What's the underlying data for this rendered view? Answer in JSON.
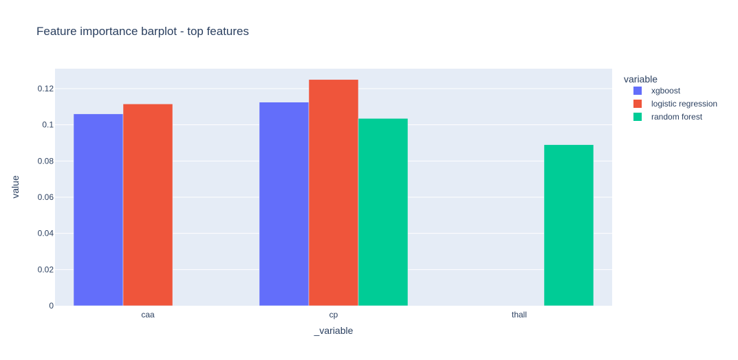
{
  "chart_data": {
    "type": "bar",
    "title": "Feature importance barplot - top features",
    "xlabel": "_variable",
    "ylabel": "value",
    "categories": [
      "caa",
      "cp",
      "thall"
    ],
    "series": [
      {
        "name": "xgboost",
        "color": "#636efa",
        "values": [
          0.106,
          0.1125,
          null
        ]
      },
      {
        "name": "logistic regression",
        "color": "#ef553b",
        "values": [
          0.1115,
          0.125,
          null
        ]
      },
      {
        "name": "random forest",
        "color": "#00cc96",
        "values": [
          null,
          0.1035,
          0.089
        ]
      }
    ],
    "ylim": [
      0,
      0.131
    ],
    "yticks": [
      0,
      0.02,
      0.04,
      0.06,
      0.08,
      0.1,
      0.12
    ],
    "ytick_labels": [
      "0",
      "0.02",
      "0.04",
      "0.06",
      "0.08",
      "0.1",
      "0.12"
    ],
    "legend_title": "variable",
    "legend_position": "right",
    "grid": true,
    "plot_bg": "#e5ecf6"
  }
}
